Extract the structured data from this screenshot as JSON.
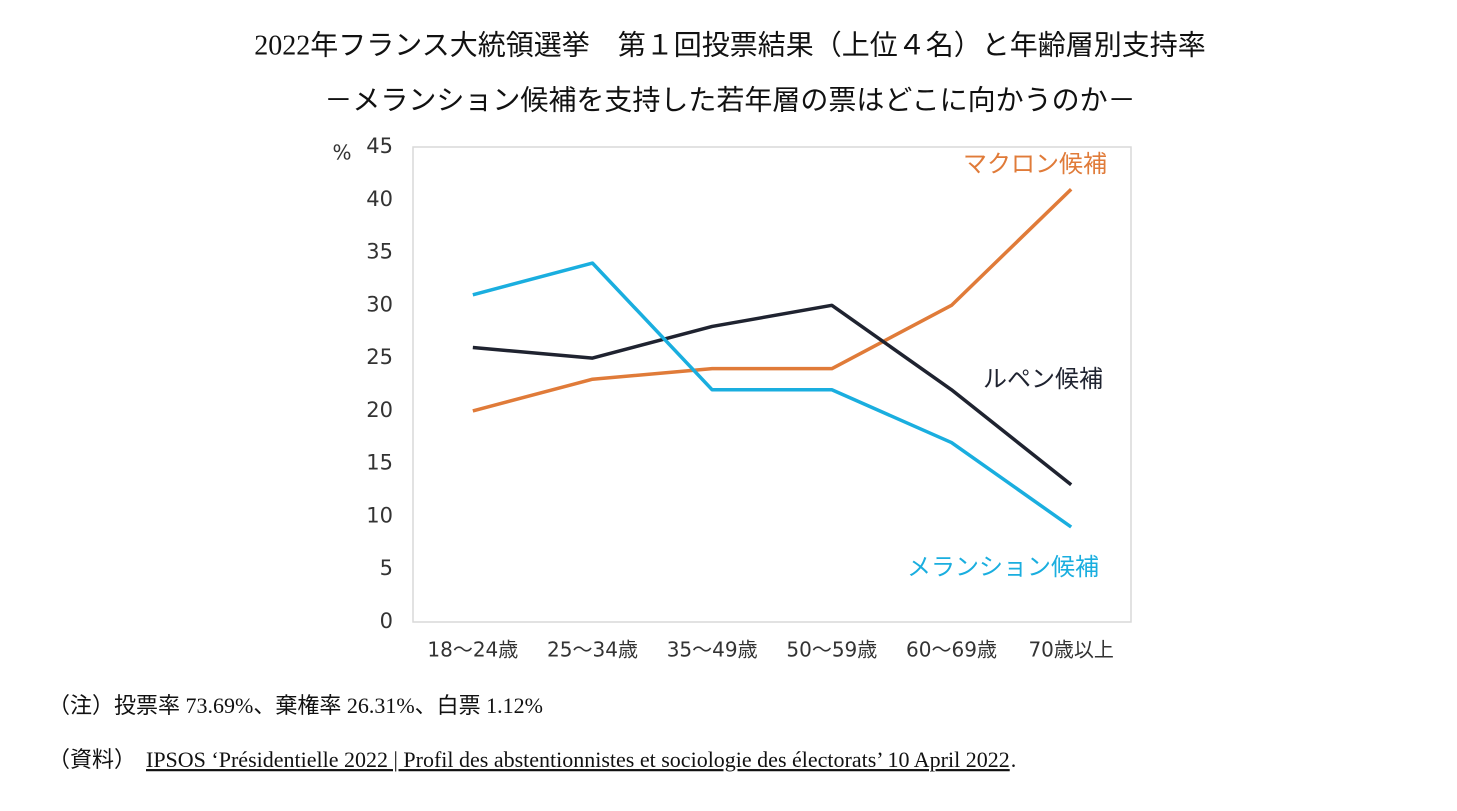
{
  "chart_data": {
    "type": "line",
    "title": "2022年フランス大統領選挙　第１回投票結果（上位４名）と年齢層別支持率",
    "subtitle": "－メランション候補を支持した若年層の票はどこに向かうのか－",
    "y_unit": "%",
    "categories": [
      "18～24歳",
      "25～34歳",
      "35～49歳",
      "50～59歳",
      "60～69歳",
      "70歳以上"
    ],
    "series": [
      {
        "name": "マクロン候補",
        "color": "#e07b39",
        "values": [
          20,
          23,
          24,
          24,
          30,
          41
        ]
      },
      {
        "name": "ルペン候補",
        "color": "#1f2330",
        "values": [
          26,
          25,
          28,
          30,
          22,
          13
        ]
      },
      {
        "name": "メランション候補",
        "color": "#1aaedf",
        "values": [
          31,
          34,
          22,
          22,
          17,
          9
        ]
      }
    ],
    "ylim": [
      0,
      45
    ],
    "yticks": [
      0,
      5,
      10,
      15,
      20,
      25,
      30,
      35,
      40,
      45
    ],
    "grid": false
  },
  "notes": {
    "note": "（注）投票率 73.69%、棄権率 26.31%、白票 1.12%",
    "source_prefix": "（資料）",
    "source_link": "IPSOS ‘Présidentielle 2022 | Profil des abstentionnistes et sociologie des électorats’ 10 April 2022",
    "source_suffix": "."
  }
}
